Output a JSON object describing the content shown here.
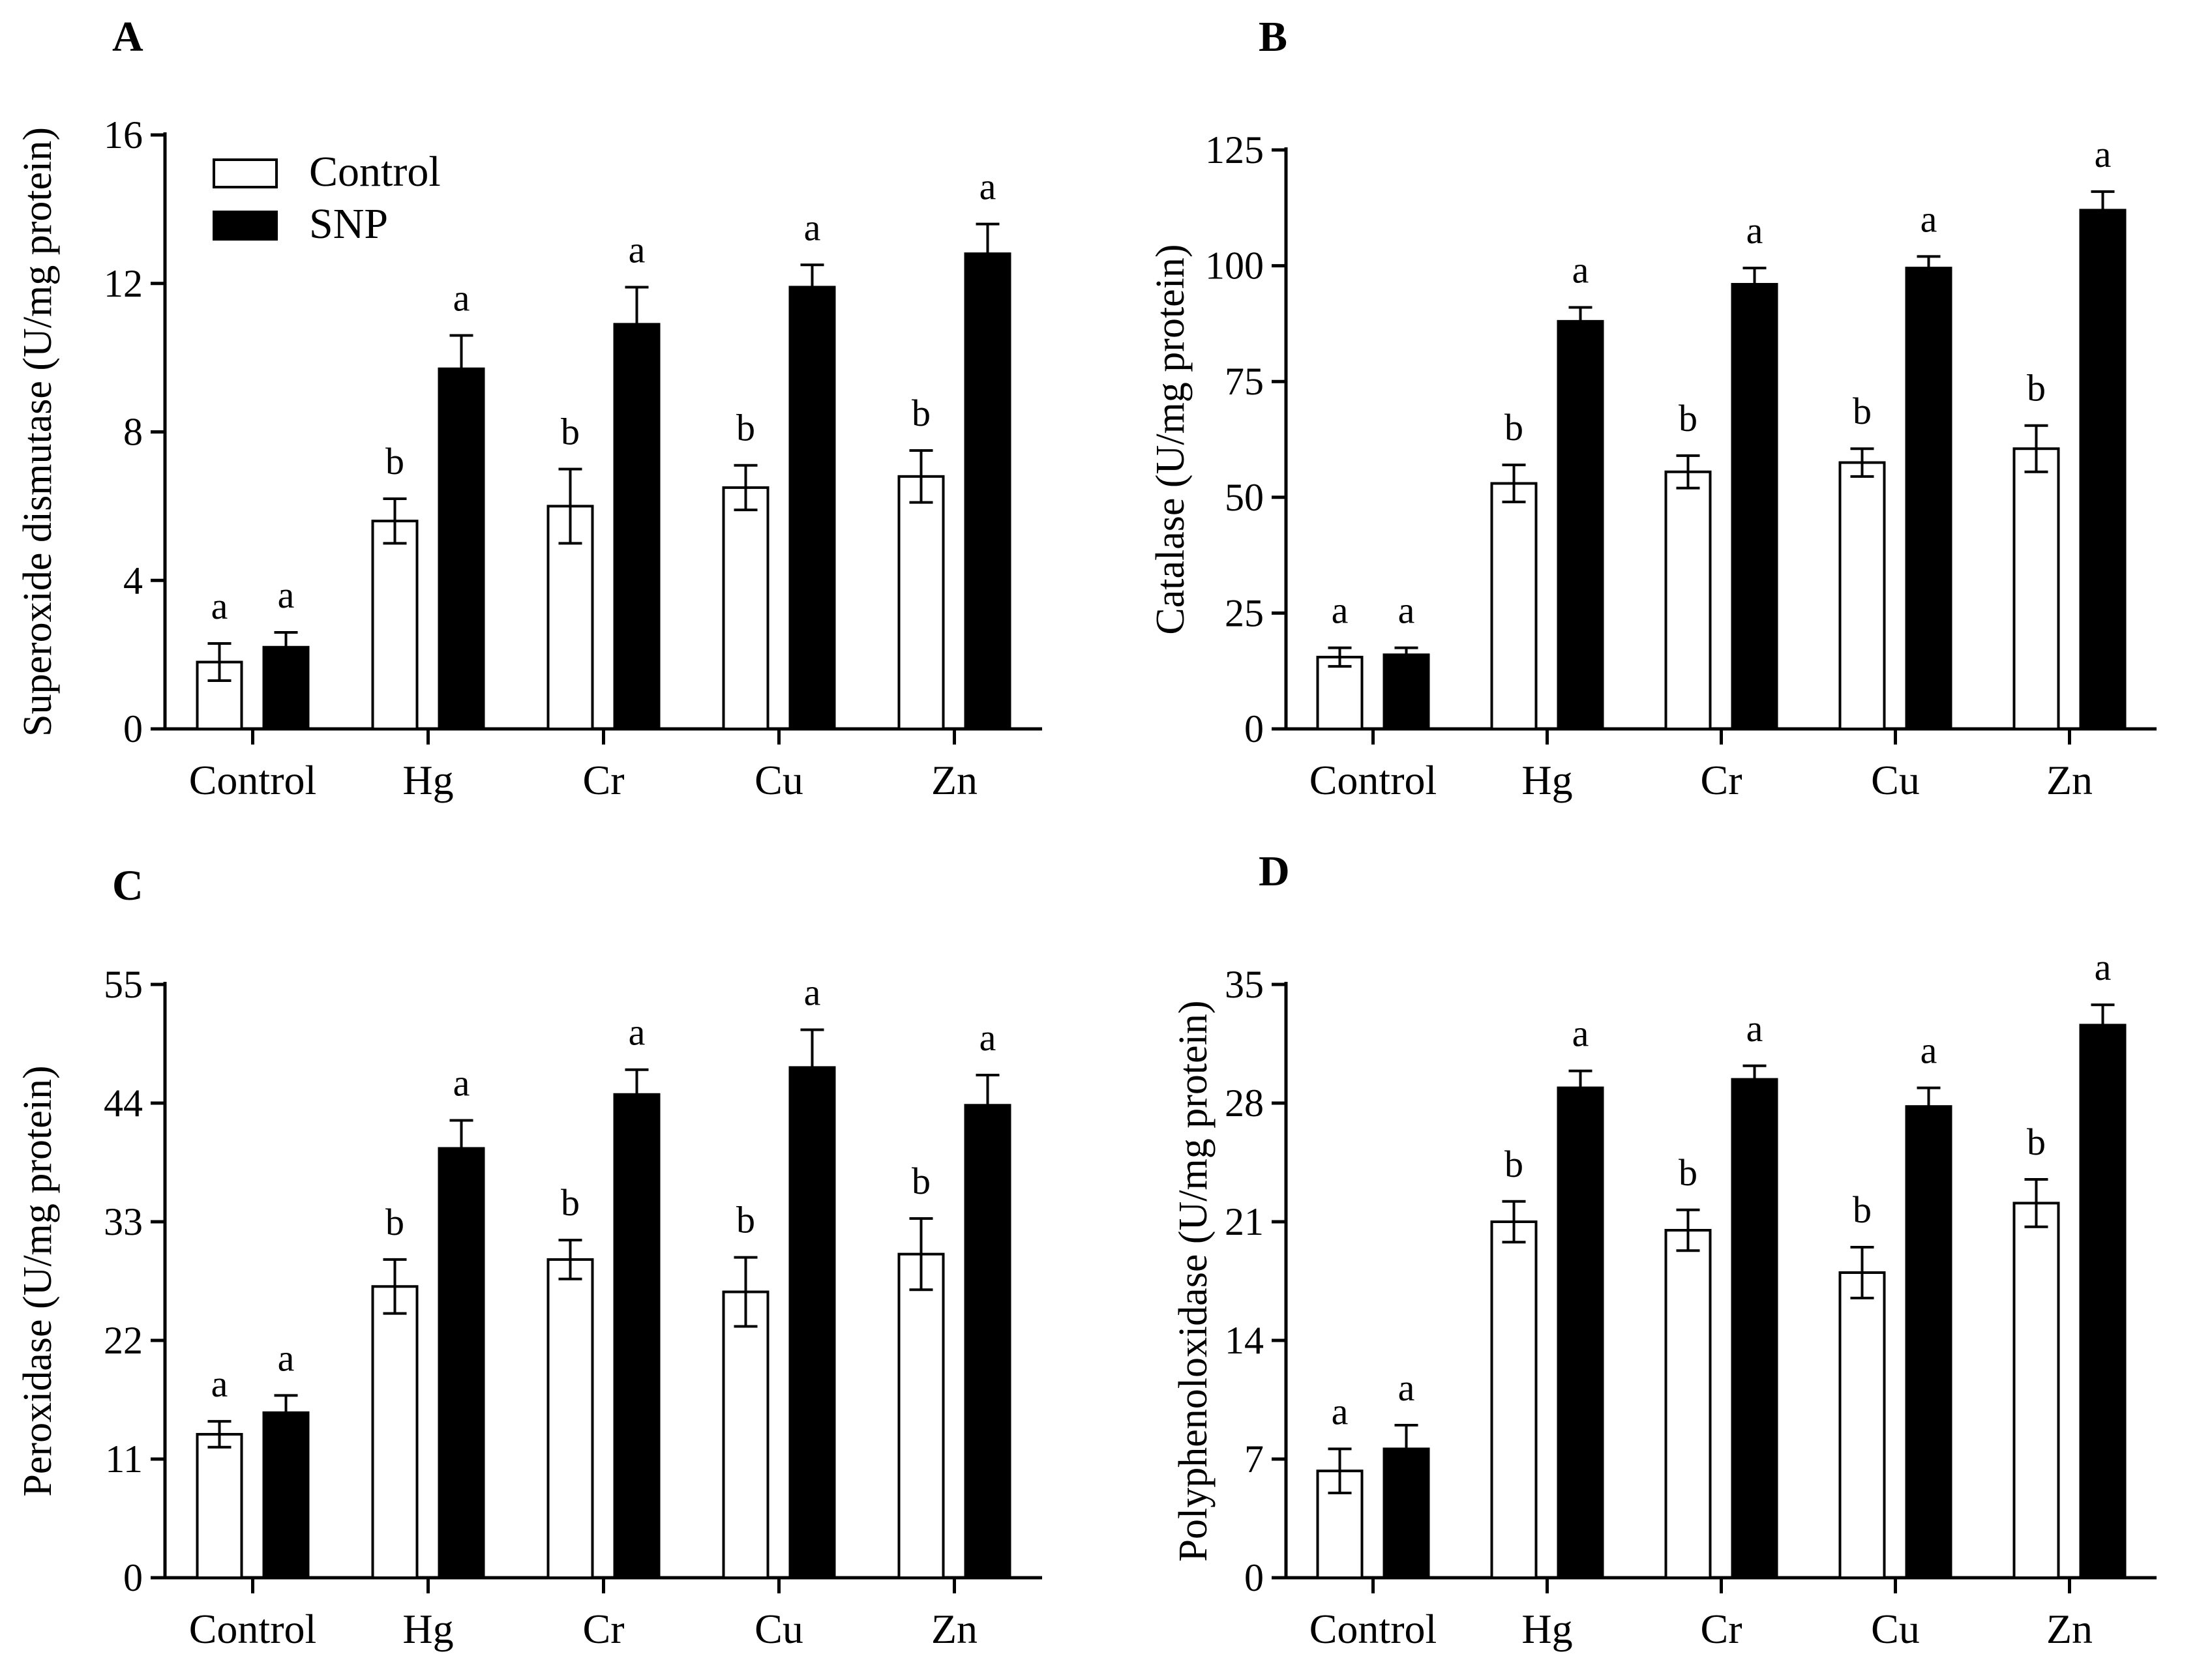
{
  "legend": {
    "entries": [
      {
        "name": "Control",
        "fill": "#ffffff"
      },
      {
        "name": "SNP",
        "fill": "#000000"
      }
    ]
  },
  "chart_data": [
    {
      "panel": "A",
      "type": "bar",
      "ylabel": "Superoxide dismutase (U/mg protein)",
      "categories": [
        "Control",
        "Hg",
        "Cr",
        "Cu",
        "Zn"
      ],
      "ylim": [
        0,
        16
      ],
      "yticks": [
        0,
        4,
        8,
        12,
        16
      ],
      "series": [
        {
          "name": "Control",
          "values": [
            1.8,
            5.6,
            6.0,
            6.5,
            6.8
          ],
          "errors": [
            0.5,
            0.6,
            1.0,
            0.6,
            0.7
          ],
          "labels": [
            "a",
            "b",
            "b",
            "b",
            "b"
          ]
        },
        {
          "name": "SNP",
          "values": [
            2.2,
            9.7,
            10.9,
            11.9,
            12.8
          ],
          "errors": [
            0.4,
            0.9,
            1.0,
            0.6,
            0.8
          ],
          "labels": [
            "a",
            "a",
            "a",
            "a",
            "a"
          ]
        }
      ]
    },
    {
      "panel": "B",
      "type": "bar",
      "ylabel": "Catalase (U/mg protein)",
      "categories": [
        "Control",
        "Hg",
        "Cr",
        "Cu",
        "Zn"
      ],
      "ylim": [
        0,
        125
      ],
      "yticks": [
        0,
        25,
        50,
        75,
        100,
        125
      ],
      "series": [
        {
          "name": "Control",
          "values": [
            15.5,
            53.0,
            55.5,
            57.5,
            60.5
          ],
          "errors": [
            2.0,
            4.0,
            3.5,
            3.0,
            5.0
          ],
          "labels": [
            "a",
            "b",
            "b",
            "b",
            "b"
          ]
        },
        {
          "name": "SNP",
          "values": [
            16.0,
            88.0,
            96.0,
            99.5,
            112.0
          ],
          "errors": [
            1.5,
            3.0,
            3.5,
            2.5,
            4.0
          ],
          "labels": [
            "a",
            "a",
            "a",
            "a",
            "a"
          ]
        }
      ]
    },
    {
      "panel": "C",
      "type": "bar",
      "ylabel": "Peroxidase (U/mg protein)",
      "categories": [
        "Control",
        "Hg",
        "Cr",
        "Cu",
        "Zn"
      ],
      "ylim": [
        0,
        55
      ],
      "yticks": [
        0,
        11,
        22,
        33,
        44,
        55
      ],
      "series": [
        {
          "name": "Control",
          "values": [
            13.3,
            27.0,
            29.5,
            26.5,
            30.0
          ],
          "errors": [
            1.2,
            2.5,
            1.8,
            3.2,
            3.3
          ],
          "labels": [
            "a",
            "b",
            "b",
            "b",
            "b"
          ]
        },
        {
          "name": "SNP",
          "values": [
            15.3,
            39.8,
            44.8,
            47.3,
            43.8
          ],
          "errors": [
            1.6,
            2.6,
            2.3,
            3.5,
            2.8
          ],
          "labels": [
            "a",
            "a",
            "a",
            "a",
            "a"
          ]
        }
      ]
    },
    {
      "panel": "D",
      "type": "bar",
      "ylabel": "Polyphenoloxidase (U/mg protein)",
      "categories": [
        "Control",
        "Hg",
        "Cr",
        "Cu",
        "Zn"
      ],
      "ylim": [
        0,
        35
      ],
      "yticks": [
        0,
        7,
        14,
        21,
        28,
        35
      ],
      "series": [
        {
          "name": "Control",
          "values": [
            6.3,
            21.0,
            20.5,
            18.0,
            22.1
          ],
          "errors": [
            1.3,
            1.2,
            1.2,
            1.5,
            1.4
          ],
          "labels": [
            "a",
            "b",
            "b",
            "b",
            "b"
          ]
        },
        {
          "name": "SNP",
          "values": [
            7.6,
            28.9,
            29.4,
            27.8,
            32.6
          ],
          "errors": [
            1.4,
            1.0,
            0.8,
            1.1,
            1.2
          ],
          "labels": [
            "a",
            "a",
            "a",
            "a",
            "a"
          ]
        }
      ]
    }
  ]
}
